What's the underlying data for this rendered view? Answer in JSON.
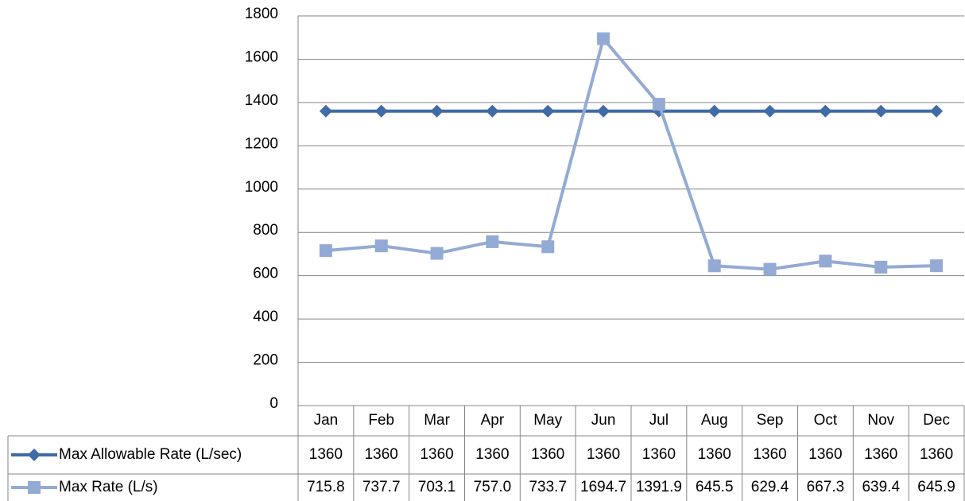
{
  "chart_data": {
    "type": "line",
    "categories": [
      "Jan",
      "Feb",
      "Mar",
      "Apr",
      "May",
      "Jun",
      "Jul",
      "Aug",
      "Sep",
      "Oct",
      "Nov",
      "Dec"
    ],
    "series": [
      {
        "name": "Max Allowable Rate (L/sec)",
        "color": "#416ba6",
        "marker": "diamond",
        "values": [
          1360,
          1360,
          1360,
          1360,
          1360,
          1360,
          1360,
          1360,
          1360,
          1360,
          1360,
          1360
        ]
      },
      {
        "name": "Max Rate (L/s)",
        "color": "#93aad4",
        "marker": "square",
        "values": [
          715.8,
          737.7,
          703.1,
          757,
          733.7,
          1694.7,
          1391.9,
          645.5,
          629.4,
          667.3,
          639.4,
          645.9
        ],
        "value_labels": [
          "715.8",
          "737.7",
          "703.1",
          "757.0",
          "733.7",
          "1694.7",
          "1391.9",
          "645.5",
          "629.4",
          "667.3",
          "639.4",
          "645.9"
        ]
      }
    ],
    "ylim": [
      0,
      1800
    ],
    "yticks": [
      0,
      200,
      400,
      600,
      800,
      1000,
      1200,
      1400,
      1600,
      1800
    ],
    "grid": true,
    "data_table": true
  }
}
